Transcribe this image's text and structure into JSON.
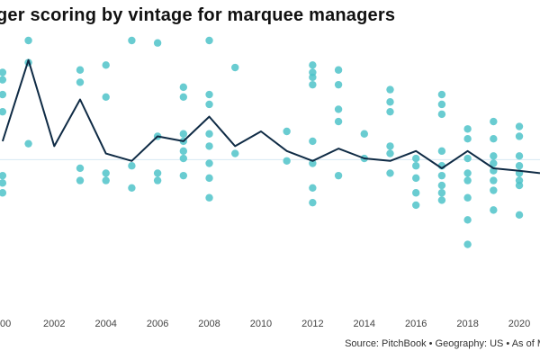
{
  "title": "ger scoring by vintage for marquee managers",
  "source": "Source: PitchBook • Geography: US • As of M",
  "colors": {
    "dots": "#4fc3c9",
    "line": "#0f2b45",
    "baseline": "#d7e8f2",
    "text": "#111111"
  },
  "chart_data": {
    "type": "scatter",
    "title": "ger scoring by vintage for marquee managers",
    "xlabel": "",
    "ylabel": "",
    "x_ticks": [
      "00",
      "2002",
      "2004",
      "2006",
      "2008",
      "2010",
      "2012",
      "2014",
      "2016",
      "2018",
      "2020"
    ],
    "xlim": [
      1999.9,
      2020.8
    ],
    "ylim": [
      0,
      100
    ],
    "baseline_y": 51.5,
    "y_axis_labels_visible": false,
    "grid": false,
    "legend": "none",
    "series": [
      {
        "kind": "line",
        "x": [
          2000,
          2001,
          2002,
          2003,
          2004,
          2005,
          2006,
          2007,
          2008,
          2009,
          2010,
          2011,
          2012,
          2013,
          2014,
          2015,
          2016,
          2017,
          2018,
          2019,
          2020,
          2020.8
        ],
        "y": [
          59,
          92,
          57,
          76,
          54,
          51,
          61,
          59,
          69,
          57,
          63,
          55,
          51,
          56,
          52,
          51,
          55,
          48,
          55,
          48,
          47,
          46
        ]
      },
      {
        "kind": "scatter",
        "points": [
          {
            "x": 2000,
            "y": 87
          },
          {
            "x": 2000,
            "y": 84
          },
          {
            "x": 2000,
            "y": 78
          },
          {
            "x": 2000,
            "y": 71
          },
          {
            "x": 2000,
            "y": 45
          },
          {
            "x": 2000,
            "y": 42
          },
          {
            "x": 2000,
            "y": 38
          },
          {
            "x": 2001,
            "y": 100
          },
          {
            "x": 2001,
            "y": 91
          },
          {
            "x": 2001,
            "y": 58
          },
          {
            "x": 2003,
            "y": 88
          },
          {
            "x": 2003,
            "y": 83
          },
          {
            "x": 2003,
            "y": 48
          },
          {
            "x": 2003,
            "y": 43
          },
          {
            "x": 2004,
            "y": 90
          },
          {
            "x": 2004,
            "y": 77
          },
          {
            "x": 2004,
            "y": 46
          },
          {
            "x": 2004,
            "y": 43
          },
          {
            "x": 2005,
            "y": 100
          },
          {
            "x": 2005,
            "y": 49
          },
          {
            "x": 2005,
            "y": 40
          },
          {
            "x": 2006,
            "y": 99
          },
          {
            "x": 2006,
            "y": 61
          },
          {
            "x": 2006,
            "y": 46
          },
          {
            "x": 2006,
            "y": 43
          },
          {
            "x": 2007,
            "y": 81
          },
          {
            "x": 2007,
            "y": 77
          },
          {
            "x": 2007,
            "y": 62
          },
          {
            "x": 2007,
            "y": 59
          },
          {
            "x": 2007,
            "y": 55
          },
          {
            "x": 2007,
            "y": 52
          },
          {
            "x": 2007,
            "y": 45
          },
          {
            "x": 2008,
            "y": 100
          },
          {
            "x": 2008,
            "y": 78
          },
          {
            "x": 2008,
            "y": 74
          },
          {
            "x": 2008,
            "y": 62
          },
          {
            "x": 2008,
            "y": 57
          },
          {
            "x": 2008,
            "y": 50
          },
          {
            "x": 2008,
            "y": 44
          },
          {
            "x": 2008,
            "y": 36
          },
          {
            "x": 2009,
            "y": 89
          },
          {
            "x": 2009,
            "y": 54
          },
          {
            "x": 2011,
            "y": 63
          },
          {
            "x": 2011,
            "y": 51
          },
          {
            "x": 2012,
            "y": 90
          },
          {
            "x": 2012,
            "y": 87
          },
          {
            "x": 2012,
            "y": 85
          },
          {
            "x": 2012,
            "y": 82
          },
          {
            "x": 2012,
            "y": 59
          },
          {
            "x": 2012,
            "y": 50
          },
          {
            "x": 2012,
            "y": 40
          },
          {
            "x": 2012,
            "y": 34
          },
          {
            "x": 2013,
            "y": 88
          },
          {
            "x": 2013,
            "y": 82
          },
          {
            "x": 2013,
            "y": 72
          },
          {
            "x": 2013,
            "y": 67
          },
          {
            "x": 2013,
            "y": 45
          },
          {
            "x": 2014,
            "y": 62
          },
          {
            "x": 2014,
            "y": 52
          },
          {
            "x": 2015,
            "y": 80
          },
          {
            "x": 2015,
            "y": 75
          },
          {
            "x": 2015,
            "y": 71
          },
          {
            "x": 2015,
            "y": 57
          },
          {
            "x": 2015,
            "y": 54
          },
          {
            "x": 2015,
            "y": 46
          },
          {
            "x": 2016,
            "y": 52
          },
          {
            "x": 2016,
            "y": 49
          },
          {
            "x": 2016,
            "y": 44
          },
          {
            "x": 2016,
            "y": 38
          },
          {
            "x": 2016,
            "y": 33
          },
          {
            "x": 2017,
            "y": 78
          },
          {
            "x": 2017,
            "y": 74
          },
          {
            "x": 2017,
            "y": 70
          },
          {
            "x": 2017,
            "y": 55
          },
          {
            "x": 2017,
            "y": 49
          },
          {
            "x": 2017,
            "y": 45
          },
          {
            "x": 2017,
            "y": 41
          },
          {
            "x": 2017,
            "y": 38
          },
          {
            "x": 2017,
            "y": 35
          },
          {
            "x": 2018,
            "y": 64
          },
          {
            "x": 2018,
            "y": 60
          },
          {
            "x": 2018,
            "y": 52
          },
          {
            "x": 2018,
            "y": 46
          },
          {
            "x": 2018,
            "y": 43
          },
          {
            "x": 2018,
            "y": 36
          },
          {
            "x": 2018,
            "y": 27
          },
          {
            "x": 2018,
            "y": 17
          },
          {
            "x": 2019,
            "y": 67
          },
          {
            "x": 2019,
            "y": 60
          },
          {
            "x": 2019,
            "y": 53
          },
          {
            "x": 2019,
            "y": 50
          },
          {
            "x": 2019,
            "y": 47
          },
          {
            "x": 2019,
            "y": 43
          },
          {
            "x": 2019,
            "y": 39
          },
          {
            "x": 2019,
            "y": 31
          },
          {
            "x": 2020,
            "y": 65
          },
          {
            "x": 2020,
            "y": 61
          },
          {
            "x": 2020,
            "y": 53
          },
          {
            "x": 2020,
            "y": 49
          },
          {
            "x": 2020,
            "y": 46
          },
          {
            "x": 2020,
            "y": 43
          },
          {
            "x": 2020,
            "y": 41
          },
          {
            "x": 2020,
            "y": 29
          }
        ]
      }
    ]
  }
}
